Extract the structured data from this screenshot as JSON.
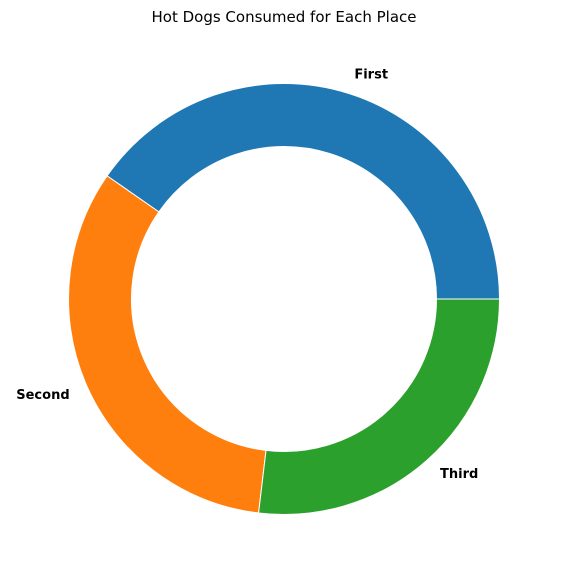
{
  "chart_data": {
    "type": "pie",
    "donut": true,
    "title": "Hot Dogs Consumed for Each Place",
    "categories": [
      "First",
      "Second",
      "Third"
    ],
    "values": [
      75,
      61,
      50
    ],
    "colors": [
      "#1f77b4",
      "#ff7f0e",
      "#2ca02c"
    ],
    "start_angle_deg": 0,
    "direction": "counterclockwise",
    "legend": "none"
  }
}
